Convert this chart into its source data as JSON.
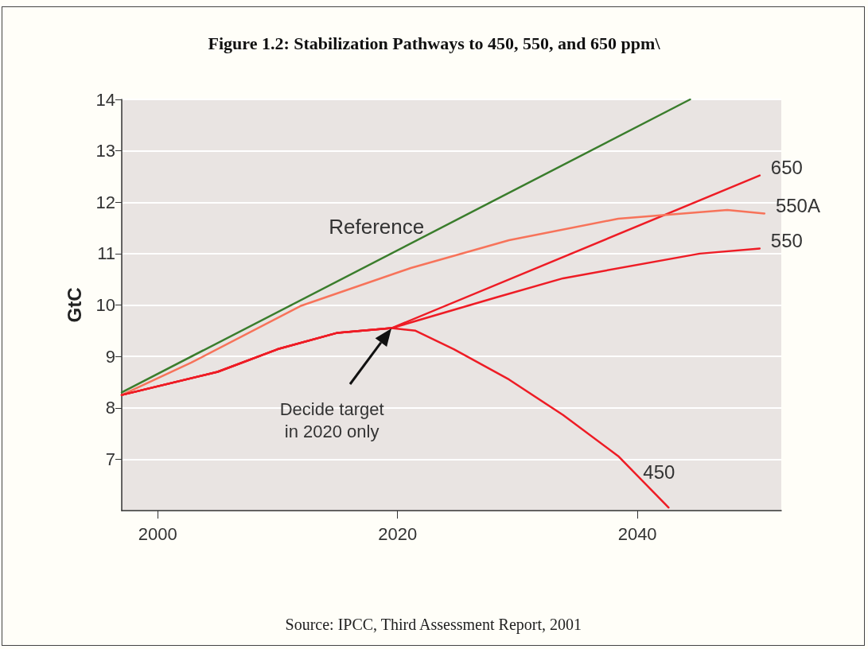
{
  "chart_data": {
    "type": "line",
    "title": "Figure 1.2: Stabilization Pathways to 450, 550, and 650 ppm\\",
    "ylabel": "GtC",
    "annotations": [
      "Decide target\nin 2020 only",
      "Source: IPCC, Third Assessment Report, 2001"
    ],
    "xlim": [
      1997,
      2052
    ],
    "xticks": [
      2000,
      2020,
      2040
    ],
    "ylim": [
      6,
      14
    ],
    "yticks": [
      7,
      8,
      9,
      10,
      11,
      12,
      13,
      14
    ],
    "grid": "y",
    "legend": false,
    "marker": "none",
    "line_style": "solid",
    "series": [
      {
        "name": "Reference",
        "color": "#3a7d2c",
        "x": [
          1997,
          2044.4
        ],
        "values": [
          8.3,
          14
        ]
      },
      {
        "name": "650",
        "color": "#ee1c25",
        "x": [
          1997,
          2005,
          2010,
          2015,
          2019.5,
          2050.2
        ],
        "values": [
          8.25,
          8.7,
          9.14,
          9.46,
          9.55,
          12.52
        ]
      },
      {
        "name": "550A",
        "color": "#f7735a",
        "x": [
          1997,
          2002.8,
          2011.9,
          2021.1,
          2029.3,
          2038.4,
          2047.5,
          2050.6
        ],
        "values": [
          8.25,
          8.88,
          9.98,
          10.72,
          11.26,
          11.68,
          11.85,
          11.78
        ]
      },
      {
        "name": "550",
        "color": "#ee1c25",
        "x": [
          1997,
          2005,
          2010,
          2015,
          2019.5,
          2028.1,
          2033.8,
          2045.2,
          2050.2
        ],
        "values": [
          8.25,
          8.7,
          9.14,
          9.46,
          9.55,
          10.14,
          10.52,
          11.0,
          11.1
        ]
      },
      {
        "name": "450",
        "color": "#ee1c25",
        "x": [
          1997,
          2005,
          2010,
          2015,
          2019.5,
          2021.5,
          2024.7,
          2029.3,
          2033.8,
          2038.4,
          2042.6
        ],
        "values": [
          8.25,
          8.7,
          9.14,
          9.46,
          9.55,
          9.5,
          9.14,
          8.55,
          7.86,
          7.06,
          6.06
        ]
      }
    ]
  }
}
